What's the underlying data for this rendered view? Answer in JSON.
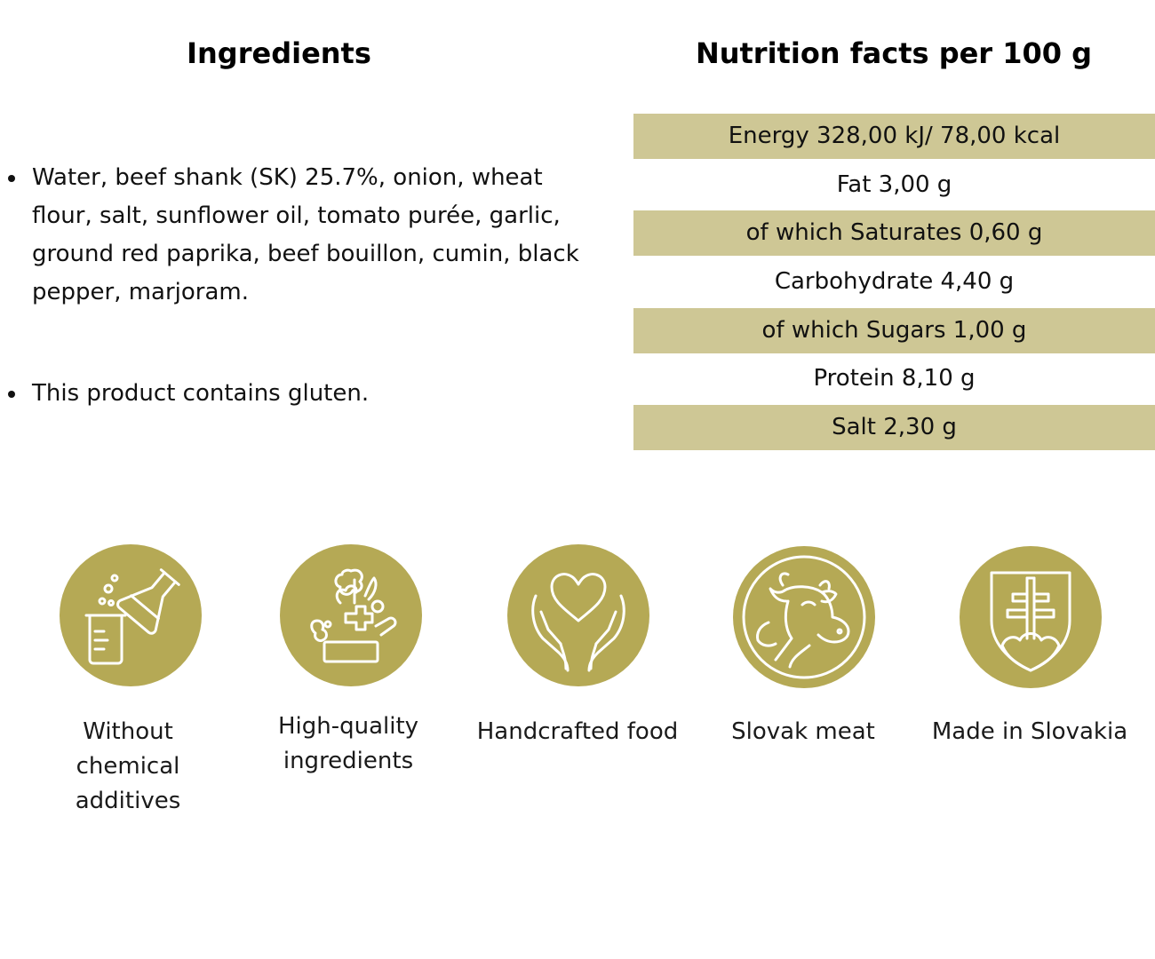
{
  "ingredients": {
    "heading": "Ingredients",
    "items": [
      "Water, beef shank (SK) 25.7%, onion, wheat flour, salt, sunflower oil, tomato purée, garlic, ground red paprika, beef bouillon, cumin, black pepper, marjoram.",
      "This product contains gluten."
    ]
  },
  "nutrition": {
    "heading": "Nutrition facts per 100 g",
    "rows": [
      "Energy 328,00 kJ/ 78,00 kcal",
      "Fat 3,00 g",
      "of which Saturates 0,60 g",
      "Carbohydrate 4,40 g",
      "of which Sugars 1,00 g",
      "Protein 8,10 g",
      "Salt 2,30 g"
    ],
    "row_color": "#cec795"
  },
  "badges": [
    {
      "icon": "chemistry-flask-icon",
      "label": "Without\nchemical\n additives"
    },
    {
      "icon": "vegetables-icon",
      "label": "High-quality\ningredients"
    },
    {
      "icon": "heart-hands-icon",
      "label": "Handcrafted food"
    },
    {
      "icon": "cow-icon",
      "label": "Slovak meat"
    },
    {
      "icon": "slovak-coat-of-arms-icon",
      "label": "Made in Slovakia"
    }
  ],
  "colors": {
    "badge": "#b5a955",
    "icon_stroke": "#ffffff",
    "text": "#111111"
  }
}
